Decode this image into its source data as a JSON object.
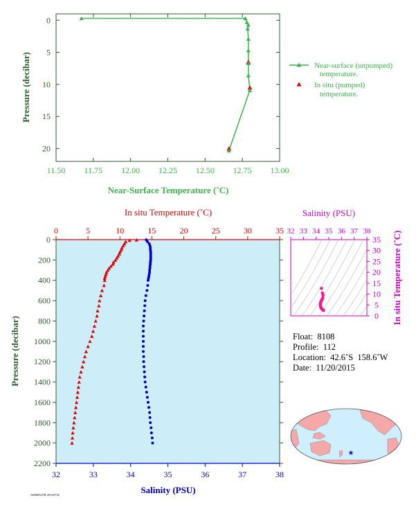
{
  "colors": {
    "near_surface": "#3cb44b",
    "insitu_temp": "#e00000",
    "salinity": "#0000cc",
    "pressure_axis_text": "#2e5a2e",
    "panel_bg": "#cdeef8",
    "salinity_panel_accent": "#cc00cc",
    "ts_points": "#ff1493",
    "map_land": "#f4a8a8",
    "map_ocean": "#cfefff",
    "float_marker": "#1010cc"
  },
  "info": {
    "float": "Float:  8108",
    "profile": "Profile:  112",
    "location": "Location:  42.6˚S  158.6˚W",
    "date": "Date:  11/20/2015"
  },
  "footer_code": "A080832TR 20130716",
  "chart_data": [
    {
      "type": "line",
      "title": "",
      "xlabel": "Near-Surface Temperature (˚C)",
      "ylabel": "Pressure (decibar)",
      "xlim": [
        11.5,
        13.0
      ],
      "ylim": [
        22,
        -1
      ],
      "x_ticks": [
        11.5,
        11.75,
        12.0,
        12.25,
        12.5,
        12.75,
        13.0
      ],
      "x_tick_labels": [
        "11.50",
        "11.75",
        "12.00",
        "12.25",
        "12.50",
        "12.75",
        "13.00"
      ],
      "y_ticks": [
        0,
        5,
        10,
        15,
        20
      ],
      "y_tick_labels": [
        "0",
        "5",
        "10",
        "15",
        "20"
      ],
      "legend": "right",
      "series": [
        {
          "name": "Near-surface (unpumped) temperature.",
          "marker": "triangle",
          "x": [
            11.67,
            12.77,
            12.78,
            12.79,
            12.785,
            12.79,
            12.79,
            12.79,
            12.79,
            12.8,
            12.66
          ],
          "y": [
            -0.3,
            -0.3,
            0.3,
            0.7,
            1.3,
            2.9,
            4.7,
            6.7,
            8.6,
            10.9,
            20.3
          ]
        },
        {
          "name": "In situ (pumped) temperature.",
          "marker": "triangle",
          "x": [
            12.79,
            12.8,
            12.66
          ],
          "y": [
            6.5,
            10.5,
            20.0
          ]
        }
      ]
    },
    {
      "type": "scatter",
      "title": "",
      "xlabel_top": "In situ Temperature (˚C)",
      "xlabel_bottom": "Salinity (PSU)",
      "ylabel": "Pressure (decibar)",
      "top_xlim": [
        0,
        35
      ],
      "bottom_xlim": [
        32,
        38
      ],
      "ylim": [
        2200,
        0
      ],
      "top_ticks": [
        "0",
        "5",
        "10",
        "15",
        "20",
        "25",
        "30",
        "35"
      ],
      "bottom_ticks": [
        "32",
        "33",
        "34",
        "35",
        "36",
        "37",
        "38"
      ],
      "y_ticks": [
        "0",
        "200",
        "400",
        "600",
        "800",
        "1000",
        "1200",
        "1400",
        "1600",
        "1800",
        "2000",
        "2200"
      ],
      "series": [
        {
          "name": "In situ Temperature",
          "axis": "top",
          "points": [
            [
              12.6,
              2
            ],
            [
              11.5,
              6
            ],
            [
              10.9,
              20
            ],
            [
              10.7,
              40
            ],
            [
              10.5,
              60
            ],
            [
              10.3,
              80
            ],
            [
              10.2,
              100
            ],
            [
              10.0,
              120
            ],
            [
              9.9,
              140
            ],
            [
              9.7,
              160
            ],
            [
              9.5,
              180
            ],
            [
              9.3,
              200
            ],
            [
              9.0,
              220
            ],
            [
              8.9,
              240
            ],
            [
              8.6,
              260
            ],
            [
              8.3,
              280
            ],
            [
              8.1,
              300
            ],
            [
              7.9,
              320
            ],
            [
              7.8,
              340
            ],
            [
              7.7,
              360
            ],
            [
              7.6,
              380
            ],
            [
              7.6,
              400
            ],
            [
              7.5,
              450
            ],
            [
              7.2,
              500
            ],
            [
              7.0,
              550
            ],
            [
              6.8,
              600
            ],
            [
              6.7,
              650
            ],
            [
              6.5,
              700
            ],
            [
              6.4,
              750
            ],
            [
              6.2,
              800
            ],
            [
              6.0,
              850
            ],
            [
              5.8,
              900
            ],
            [
              5.6,
              950
            ],
            [
              5.3,
              1000
            ],
            [
              5.0,
              1050
            ],
            [
              4.7,
              1100
            ],
            [
              4.5,
              1150
            ],
            [
              4.3,
              1200
            ],
            [
              4.1,
              1250
            ],
            [
              3.9,
              1300
            ],
            [
              3.7,
              1350
            ],
            [
              3.6,
              1400
            ],
            [
              3.5,
              1450
            ],
            [
              3.4,
              1500
            ],
            [
              3.3,
              1550
            ],
            [
              3.2,
              1600
            ],
            [
              3.1,
              1650
            ],
            [
              3.0,
              1700
            ],
            [
              2.9,
              1750
            ],
            [
              2.8,
              1800
            ],
            [
              2.7,
              1850
            ],
            [
              2.6,
              1900
            ],
            [
              2.55,
              1950
            ],
            [
              2.5,
              2000
            ]
          ]
        },
        {
          "name": "Salinity",
          "axis": "bottom",
          "points": [
            [
              34.42,
              2
            ],
            [
              34.45,
              20
            ],
            [
              34.5,
              40
            ],
            [
              34.52,
              60
            ],
            [
              34.53,
              80
            ],
            [
              34.53,
              100
            ],
            [
              34.54,
              120
            ],
            [
              34.54,
              140
            ],
            [
              34.54,
              160
            ],
            [
              34.54,
              180
            ],
            [
              34.54,
              200
            ],
            [
              34.53,
              220
            ],
            [
              34.53,
              240
            ],
            [
              34.52,
              260
            ],
            [
              34.52,
              280
            ],
            [
              34.51,
              300
            ],
            [
              34.51,
              320
            ],
            [
              34.5,
              340
            ],
            [
              34.49,
              360
            ],
            [
              34.48,
              380
            ],
            [
              34.47,
              400
            ],
            [
              34.46,
              450
            ],
            [
              34.44,
              500
            ],
            [
              34.41,
              550
            ],
            [
              34.39,
              600
            ],
            [
              34.38,
              650
            ],
            [
              34.37,
              700
            ],
            [
              34.36,
              750
            ],
            [
              34.35,
              800
            ],
            [
              34.34,
              850
            ],
            [
              34.34,
              900
            ],
            [
              34.34,
              950
            ],
            [
              34.34,
              1000
            ],
            [
              34.34,
              1050
            ],
            [
              34.34,
              1100
            ],
            [
              34.35,
              1150
            ],
            [
              34.35,
              1200
            ],
            [
              34.36,
              1250
            ],
            [
              34.37,
              1300
            ],
            [
              34.38,
              1350
            ],
            [
              34.39,
              1400
            ],
            [
              34.41,
              1450
            ],
            [
              34.43,
              1500
            ],
            [
              34.45,
              1550
            ],
            [
              34.47,
              1600
            ],
            [
              34.49,
              1650
            ],
            [
              34.51,
              1700
            ],
            [
              34.52,
              1750
            ],
            [
              34.53,
              1800
            ],
            [
              34.55,
              1850
            ],
            [
              34.56,
              1900
            ],
            [
              34.58,
              1950
            ],
            [
              34.59,
              2000
            ]
          ]
        }
      ]
    },
    {
      "type": "scatter",
      "title": "",
      "xlabel": "Salinity (PSU)",
      "ylabel": "In situ Temperature (˚C)",
      "xlim": [
        32,
        38
      ],
      "ylim": [
        0,
        35
      ],
      "x_ticks": [
        "32",
        "33",
        "34",
        "35",
        "36",
        "37",
        "38"
      ],
      "y_ticks": [
        "0",
        "5",
        "10",
        "15",
        "20",
        "25",
        "30",
        "35"
      ],
      "series": [
        {
          "name": "",
          "points": [
            [
              34.42,
              12.6
            ],
            [
              34.5,
              10.5
            ],
            [
              34.54,
              9.5
            ],
            [
              34.53,
              8.3
            ],
            [
              34.49,
              7.7
            ],
            [
              34.46,
              7.5
            ],
            [
              34.42,
              7.0
            ],
            [
              34.38,
              6.5
            ],
            [
              34.35,
              6.0
            ],
            [
              34.34,
              5.3
            ],
            [
              34.34,
              4.6
            ],
            [
              34.36,
              4.1
            ],
            [
              34.39,
              3.6
            ],
            [
              34.43,
              3.3
            ],
            [
              34.47,
              3.1
            ],
            [
              34.52,
              2.8
            ],
            [
              34.56,
              2.6
            ],
            [
              34.59,
              2.5
            ]
          ]
        }
      ]
    }
  ]
}
